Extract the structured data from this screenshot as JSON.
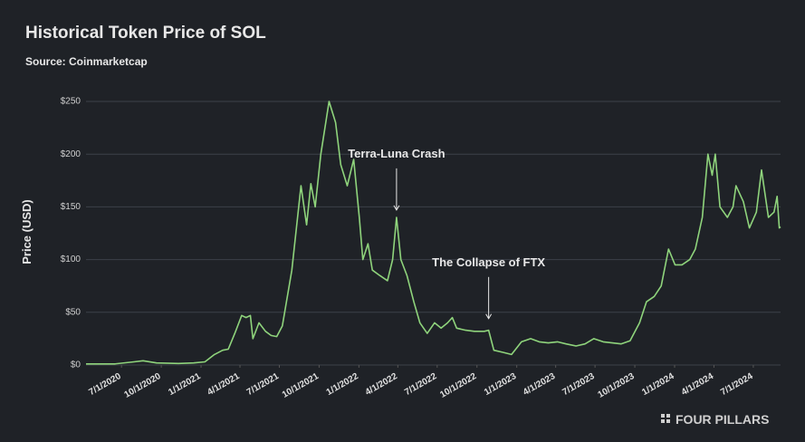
{
  "chart_data": {
    "type": "line",
    "title": "Historical Token Price of SOL",
    "subtitle": "Source: Coinmarketcap",
    "y_label": "Price (USD)",
    "footer": "FOUR PILLARS",
    "grid": true,
    "ylim": [
      0,
      250
    ],
    "yticks": [
      {
        "value": 0,
        "label": "$0"
      },
      {
        "value": 50,
        "label": "$50"
      },
      {
        "value": 100,
        "label": "$100"
      },
      {
        "value": 150,
        "label": "$150"
      },
      {
        "value": 200,
        "label": "$200"
      },
      {
        "value": 250,
        "label": "$250"
      }
    ],
    "xlim": [
      "2020-04-10",
      "2024-09-02"
    ],
    "xticks": [
      {
        "value": "2020-07-01",
        "label": "7/1/2020"
      },
      {
        "value": "2020-10-01",
        "label": "10/1/2020"
      },
      {
        "value": "2021-01-01",
        "label": "1/1/2021"
      },
      {
        "value": "2021-04-01",
        "label": "4/1/2021"
      },
      {
        "value": "2021-07-01",
        "label": "7/1/2021"
      },
      {
        "value": "2021-10-01",
        "label": "10/1/2021"
      },
      {
        "value": "2022-01-01",
        "label": "1/1/2022"
      },
      {
        "value": "2022-04-01",
        "label": "4/1/2022"
      },
      {
        "value": "2022-07-01",
        "label": "7/1/2022"
      },
      {
        "value": "2022-10-01",
        "label": "10/1/2022"
      },
      {
        "value": "2023-01-01",
        "label": "1/1/2023"
      },
      {
        "value": "2023-04-01",
        "label": "4/1/2023"
      },
      {
        "value": "2023-07-01",
        "label": "7/1/2023"
      },
      {
        "value": "2023-10-01",
        "label": "10/1/2023"
      },
      {
        "value": "2024-01-01",
        "label": "1/1/2024"
      },
      {
        "value": "2024-04-01",
        "label": "4/1/2024"
      },
      {
        "value": "2024-07-01",
        "label": "7/1/2024"
      }
    ],
    "annotations": [
      {
        "text": "Terra-Luna Crash",
        "x": "2022-03-29",
        "y": 147
      },
      {
        "text": "The Collapse of FTX",
        "x": "2022-10-28",
        "y": 44
      }
    ],
    "series": [
      {
        "name": "SOL",
        "color": "#8fd47c",
        "x": [
          "2020-04-10",
          "2020-06-15",
          "2020-07-30",
          "2020-08-20",
          "2020-09-20",
          "2020-11-10",
          "2020-12-15",
          "2021-01-10",
          "2021-02-01",
          "2021-02-20",
          "2021-03-05",
          "2021-03-20",
          "2021-04-05",
          "2021-04-15",
          "2021-04-25",
          "2021-05-01",
          "2021-05-15",
          "2021-05-30",
          "2021-06-12",
          "2021-06-25",
          "2021-07-08",
          "2021-07-30",
          "2021-08-20",
          "2021-09-02",
          "2021-09-12",
          "2021-09-22",
          "2021-10-05",
          "2021-10-24",
          "2021-11-08",
          "2021-11-20",
          "2021-12-05",
          "2021-12-20",
          "2022-01-02",
          "2022-01-10",
          "2022-01-22",
          "2022-02-01",
          "2022-02-18",
          "2022-03-08",
          "2022-03-20",
          "2022-03-29",
          "2022-04-08",
          "2022-04-22",
          "2022-05-08",
          "2022-05-22",
          "2022-06-08",
          "2022-06-25",
          "2022-07-10",
          "2022-07-25",
          "2022-08-05",
          "2022-08-15",
          "2022-09-05",
          "2022-09-25",
          "2022-10-18",
          "2022-10-28",
          "2022-11-09",
          "2022-11-30",
          "2022-12-20",
          "2023-01-12",
          "2023-02-02",
          "2023-02-22",
          "2023-03-15",
          "2023-04-05",
          "2023-04-25",
          "2023-05-18",
          "2023-06-08",
          "2023-06-28",
          "2023-07-20",
          "2023-08-10",
          "2023-08-30",
          "2023-09-20",
          "2023-10-12",
          "2023-10-28",
          "2023-11-15",
          "2023-12-01",
          "2023-12-18",
          "2024-01-02",
          "2024-01-18",
          "2024-02-05",
          "2024-02-18",
          "2024-03-05",
          "2024-03-18",
          "2024-03-28",
          "2024-04-04",
          "2024-04-15",
          "2024-05-02",
          "2024-05-15",
          "2024-05-22",
          "2024-06-08",
          "2024-06-22",
          "2024-07-08",
          "2024-07-20",
          "2024-08-05",
          "2024-08-18",
          "2024-08-25",
          "2024-08-30",
          "2024-09-02"
        ],
        "values": [
          1,
          1,
          3,
          4,
          2,
          1.5,
          2,
          3,
          10,
          14,
          15,
          30,
          47,
          45,
          47,
          25,
          40,
          32,
          28,
          27,
          37,
          90,
          170,
          133,
          172,
          150,
          200,
          250,
          230,
          190,
          170,
          195,
          140,
          100,
          115,
          90,
          85,
          80,
          100,
          140,
          100,
          85,
          60,
          40,
          30,
          40,
          35,
          40,
          45,
          35,
          33,
          32,
          32,
          33,
          14,
          12,
          10,
          22,
          25,
          22,
          21,
          22,
          20,
          18,
          20,
          25,
          22,
          21,
          20,
          23,
          40,
          60,
          65,
          75,
          110,
          95,
          95,
          100,
          110,
          140,
          200,
          180,
          200,
          150,
          140,
          150,
          170,
          155,
          130,
          145,
          185,
          140,
          145,
          160,
          130,
          131
        ]
      }
    ]
  }
}
